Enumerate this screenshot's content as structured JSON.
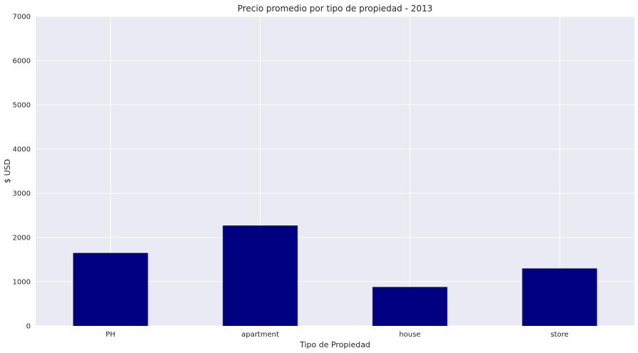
{
  "chart_data": {
    "type": "bar",
    "title": "Precio promedio por tipo de propiedad - 2013",
    "xlabel": "Tipo de Propiedad",
    "ylabel": "$ USD",
    "categories": [
      "PH",
      "apartment",
      "house",
      "store"
    ],
    "values": [
      1650,
      2270,
      880,
      1300
    ],
    "ylim": [
      0,
      7000
    ],
    "yticks": [
      0,
      1000,
      2000,
      3000,
      4000,
      5000,
      6000,
      7000
    ],
    "grid": true,
    "legend": "none",
    "colors": {
      "bar": "#000080",
      "plot_background": "#eaeaf2",
      "grid": "#ffffff"
    }
  }
}
